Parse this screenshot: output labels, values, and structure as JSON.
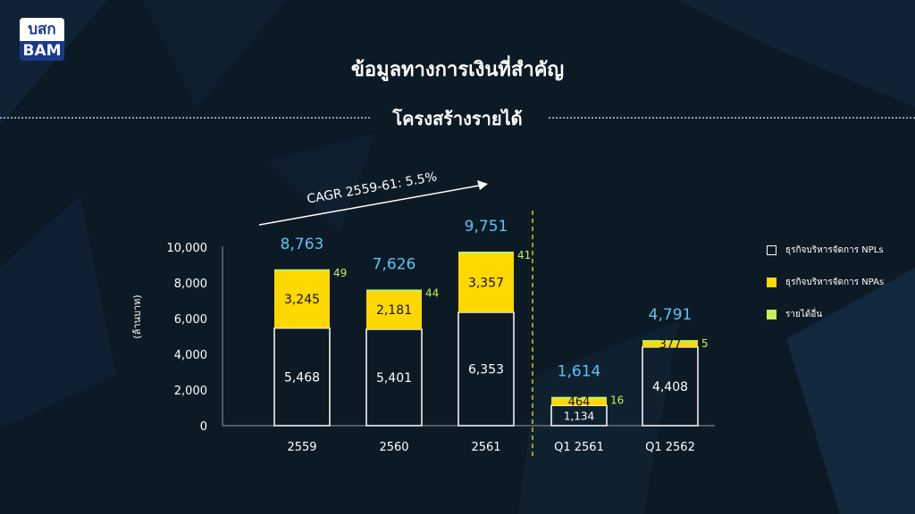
{
  "logo": {
    "top": "บสก",
    "bottom": "BAM"
  },
  "title": "ข้อมูลทางการเงินที่สำคัญ",
  "subtitle": "โครงสร้างรายได้",
  "colors": {
    "npl": "#ffffff",
    "npa": "#ffd800",
    "other": "#c3f05a",
    "total": "#5bc4f5",
    "divider": "#e6c400"
  },
  "chart_data": {
    "type": "bar",
    "stacked": true,
    "categories": [
      "2559",
      "2560",
      "2561",
      "Q1 2561",
      "Q1 2562"
    ],
    "series": [
      {
        "name": "ธุรกิจบริหารจัดการ NPLs",
        "values": [
          5468,
          5401,
          6353,
          1134,
          4408
        ],
        "labels": [
          "5,468",
          "5,401",
          "6,353",
          "1,134",
          "4,408"
        ]
      },
      {
        "name": "ธุรกิจบริหารจัดการ NPAs",
        "values": [
          3245,
          2181,
          3357,
          464,
          377
        ],
        "labels": [
          "3,245",
          "2,181",
          "3,357",
          "464",
          "377"
        ]
      },
      {
        "name": "รายได้อื่น",
        "values": [
          49,
          44,
          41,
          16,
          5
        ],
        "labels": [
          "49",
          "44",
          "41",
          "16",
          "5"
        ]
      }
    ],
    "totals": [
      "8,763",
      "7,626",
      "9,751",
      "1,614",
      "4,791"
    ],
    "ylabel": "(ล้านบาท)",
    "ylim": [
      0,
      10000
    ],
    "yticks": [
      0,
      2000,
      4000,
      6000,
      8000,
      10000
    ],
    "ytick_labels": [
      "0",
      "2,000",
      "4,000",
      "6,000",
      "8,000",
      "10,000"
    ],
    "annotation": "CAGR 2559-61: 5.5%",
    "legend_position": "right"
  }
}
